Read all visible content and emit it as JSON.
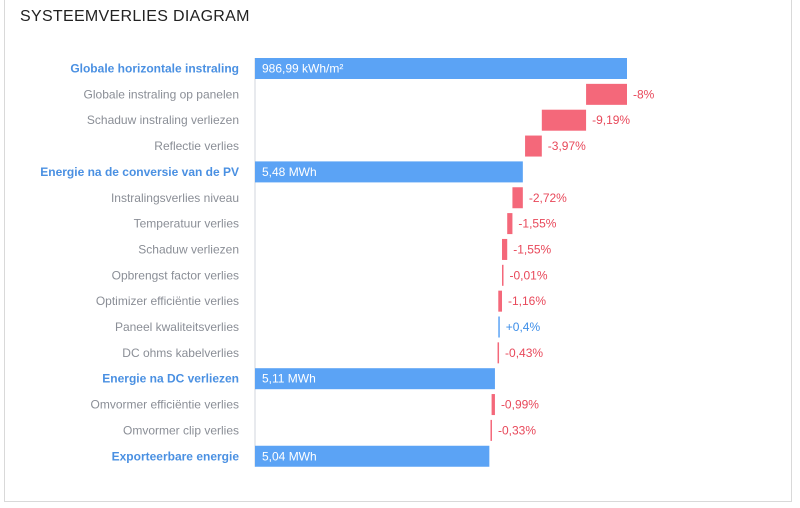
{
  "title": "SYSTEEMVERLIES DIAGRAM",
  "colors": {
    "total": "#5ba3f5",
    "loss": "#f4687a",
    "gain": "#5ba3f5",
    "total_label": "#4a90e2",
    "loss_label": "#e8485a",
    "gain_label": "#3d8ee8",
    "row_label": "#8a8e96"
  },
  "chart_data": {
    "type": "bar",
    "subtype": "waterfall",
    "title": "SYSTEEMVERLIES DIAGRAM",
    "rows": [
      {
        "label": "Globale horizontale instraling",
        "kind": "total",
        "value_text": "986,99 kWh/m²",
        "start": 0,
        "end": 1.0
      },
      {
        "label": "Globale instraling op panelen",
        "kind": "loss",
        "value_text": "-8%",
        "start": 0.89,
        "end": 1.0
      },
      {
        "label": "Schaduw instraling verliezen",
        "kind": "loss",
        "value_text": "-9,19%",
        "start": 0.771,
        "end": 0.89
      },
      {
        "label": "Reflectie verlies",
        "kind": "loss",
        "value_text": "-3,97%",
        "start": 0.726,
        "end": 0.771
      },
      {
        "label": "Energie na de conversie van de PV",
        "kind": "total",
        "value_text": "5,48 MWh",
        "start": 0,
        "end": 0.72
      },
      {
        "label": "Instralingsverlies niveau",
        "kind": "loss",
        "value_text": "-2,72%",
        "start": 0.692,
        "end": 0.72
      },
      {
        "label": "Temperatuur verlies",
        "kind": "loss",
        "value_text": "-1,55%",
        "start": 0.678,
        "end": 0.692
      },
      {
        "label": "Schaduw verliezen",
        "kind": "loss",
        "value_text": "-1,55%",
        "start": 0.664,
        "end": 0.678
      },
      {
        "label": "Opbrengst factor verlies",
        "kind": "loss",
        "value_text": "-0,01%",
        "start": 0.664,
        "end": 0.664
      },
      {
        "label": "Optimizer efficiëntie verlies",
        "kind": "loss",
        "value_text": "-1,16%",
        "start": 0.654,
        "end": 0.664
      },
      {
        "label": "Paneel kwaliteitsverlies",
        "kind": "gain",
        "value_text": "+0,4%",
        "start": 0.654,
        "end": 0.657
      },
      {
        "label": "DC ohms kabelverlies",
        "kind": "loss",
        "value_text": "-0,43%",
        "start": 0.652,
        "end": 0.655
      },
      {
        "label": "Energie na DC verliezen",
        "kind": "total",
        "value_text": "5,11 MWh",
        "start": 0,
        "end": 0.645
      },
      {
        "label": "Omvormer efficiëntie verlies",
        "kind": "loss",
        "value_text": "-0,99%",
        "start": 0.636,
        "end": 0.645
      },
      {
        "label": "Omvormer clip verlies",
        "kind": "loss",
        "value_text": "-0,33%",
        "start": 0.633,
        "end": 0.636
      },
      {
        "label": "Exporteerbare energie",
        "kind": "total",
        "value_text": "5,04 MWh",
        "start": 0,
        "end": 0.63
      }
    ]
  }
}
